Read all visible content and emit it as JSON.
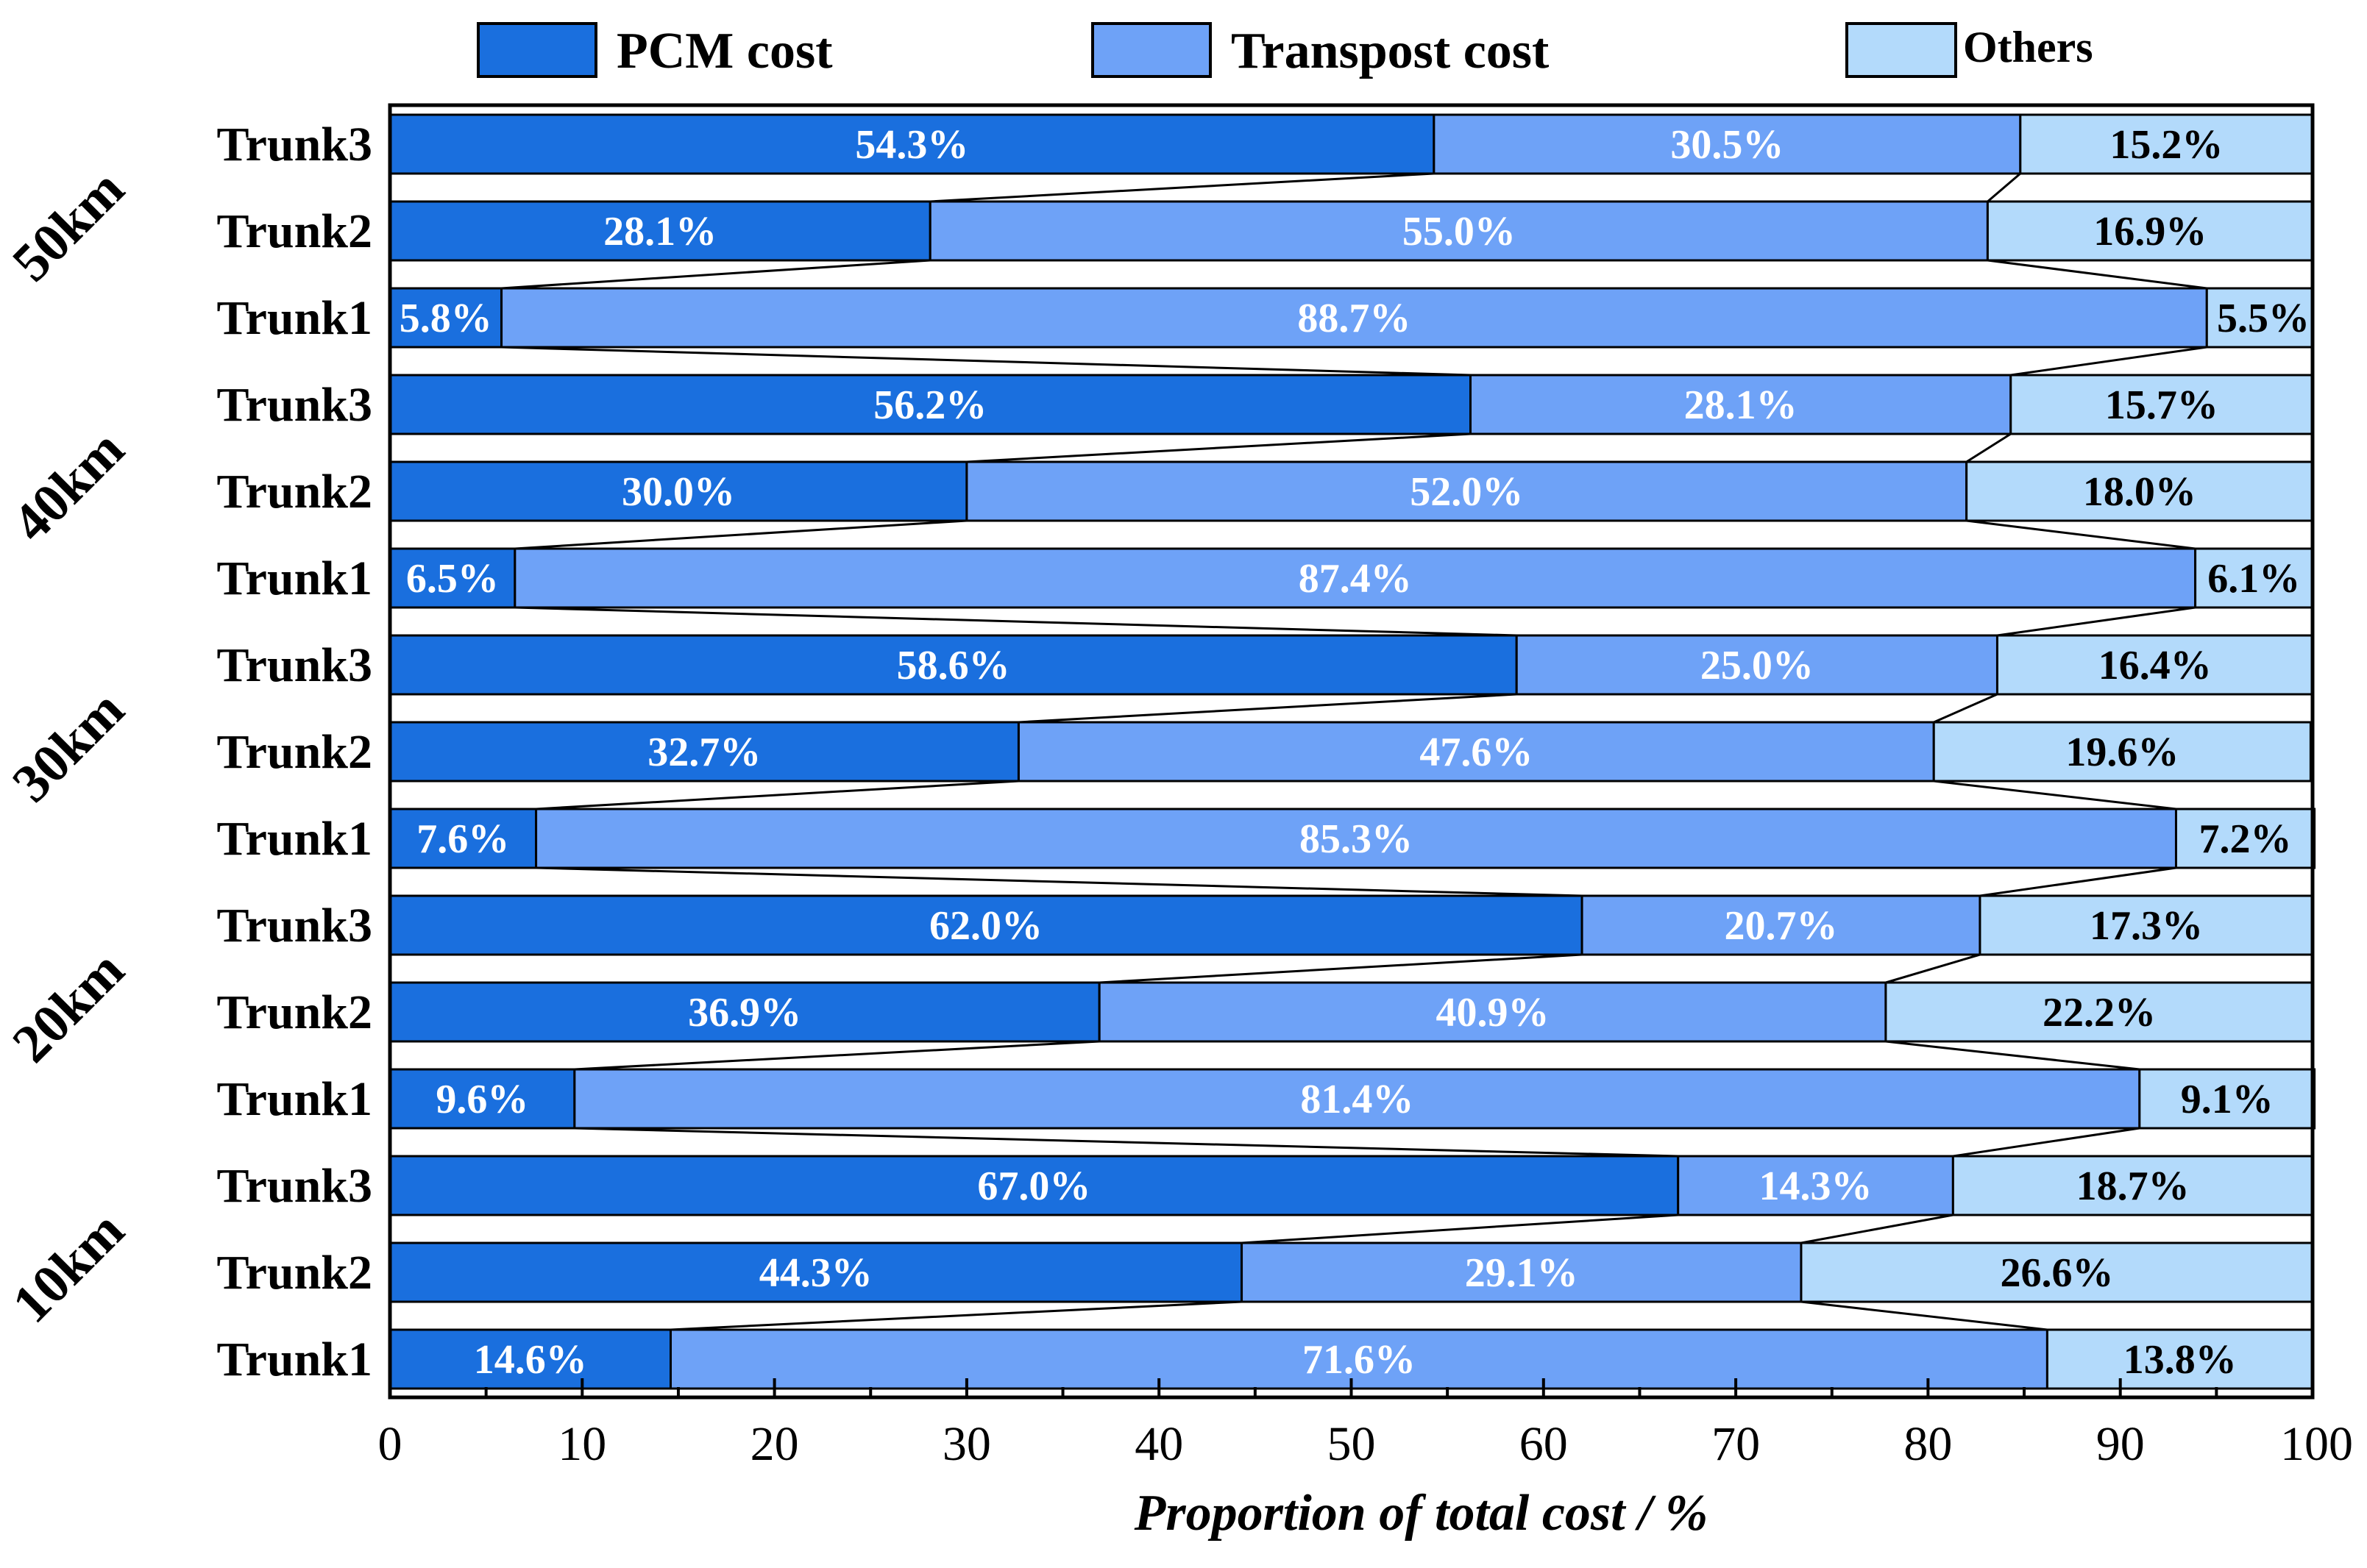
{
  "chart_data": {
    "type": "bar",
    "orientation": "horizontal",
    "stacked": true,
    "xlabel": "Proportion of total cost / %",
    "ylabel": "",
    "xlim": [
      0,
      100
    ],
    "xticks": [
      0,
      10,
      20,
      30,
      40,
      50,
      60,
      70,
      80,
      90,
      100
    ],
    "legend": {
      "position": "top",
      "entries": [
        "PCM cost",
        "Transpost cost",
        "Others"
      ]
    },
    "colors": {
      "PCM cost": "#1a6fde",
      "Transpost cost": "#6ea2f7",
      "Others": "#b3dafb",
      "label_light": "#ffffff",
      "label_dark": "#000000",
      "outline": "#000000"
    },
    "groups": [
      {
        "label": "50km",
        "trunks": [
          {
            "label": "Trunk3",
            "values": [
              54.3,
              30.5,
              15.2
            ],
            "value_labels": [
              "54.3%",
              "30.5%",
              "15.2%"
            ]
          },
          {
            "label": "Trunk2",
            "values": [
              28.1,
              55.0,
              16.9
            ],
            "value_labels": [
              "28.1%",
              "55.0%",
              "16.9%"
            ]
          },
          {
            "label": "Trunk1",
            "values": [
              5.8,
              88.7,
              5.5
            ],
            "value_labels": [
              "5.8%",
              "88.7%",
              "5.5%"
            ]
          }
        ]
      },
      {
        "label": "40km",
        "trunks": [
          {
            "label": "Trunk3",
            "values": [
              56.2,
              28.1,
              15.7
            ],
            "value_labels": [
              "56.2%",
              "28.1%",
              "15.7%"
            ]
          },
          {
            "label": "Trunk2",
            "values": [
              30.0,
              52.0,
              18.0
            ],
            "value_labels": [
              "30.0%",
              "52.0%",
              "18.0%"
            ]
          },
          {
            "label": "Trunk1",
            "values": [
              6.5,
              87.4,
              6.1
            ],
            "value_labels": [
              "6.5%",
              "87.4%",
              "6.1%"
            ]
          }
        ]
      },
      {
        "label": "30km",
        "trunks": [
          {
            "label": "Trunk3",
            "values": [
              58.6,
              25.0,
              16.4
            ],
            "value_labels": [
              "58.6%",
              "25.0%",
              "16.4%"
            ]
          },
          {
            "label": "Trunk2",
            "values": [
              32.7,
              47.6,
              19.6
            ],
            "value_labels": [
              "32.7%",
              "47.6%",
              "19.6%"
            ]
          },
          {
            "label": "Trunk1",
            "values": [
              7.6,
              85.3,
              7.2
            ],
            "value_labels": [
              "7.6%",
              "85.3%",
              "7.2%"
            ]
          }
        ]
      },
      {
        "label": "20km",
        "trunks": [
          {
            "label": "Trunk3",
            "values": [
              62.0,
              20.7,
              17.3
            ],
            "value_labels": [
              "62.0%",
              "20.7%",
              "17.3%"
            ]
          },
          {
            "label": "Trunk2",
            "values": [
              36.9,
              40.9,
              22.2
            ],
            "value_labels": [
              "36.9%",
              "40.9%",
              "22.2%"
            ]
          },
          {
            "label": "Trunk1",
            "values": [
              9.6,
              81.4,
              9.1
            ],
            "value_labels": [
              "9.6%",
              "81.4%",
              "9.1%"
            ]
          }
        ]
      },
      {
        "label": "10km",
        "trunks": [
          {
            "label": "Trunk3",
            "values": [
              67.0,
              14.3,
              18.7
            ],
            "value_labels": [
              "67.0%",
              "14.3%",
              "18.7%"
            ]
          },
          {
            "label": "Trunk2",
            "values": [
              44.3,
              29.1,
              26.6
            ],
            "value_labels": [
              "44.3%",
              "29.1%",
              "26.6%"
            ]
          },
          {
            "label": "Trunk1",
            "values": [
              14.6,
              71.6,
              13.8
            ],
            "value_labels": [
              "14.6%",
              "71.6%",
              "13.8%"
            ]
          }
        ]
      }
    ]
  }
}
